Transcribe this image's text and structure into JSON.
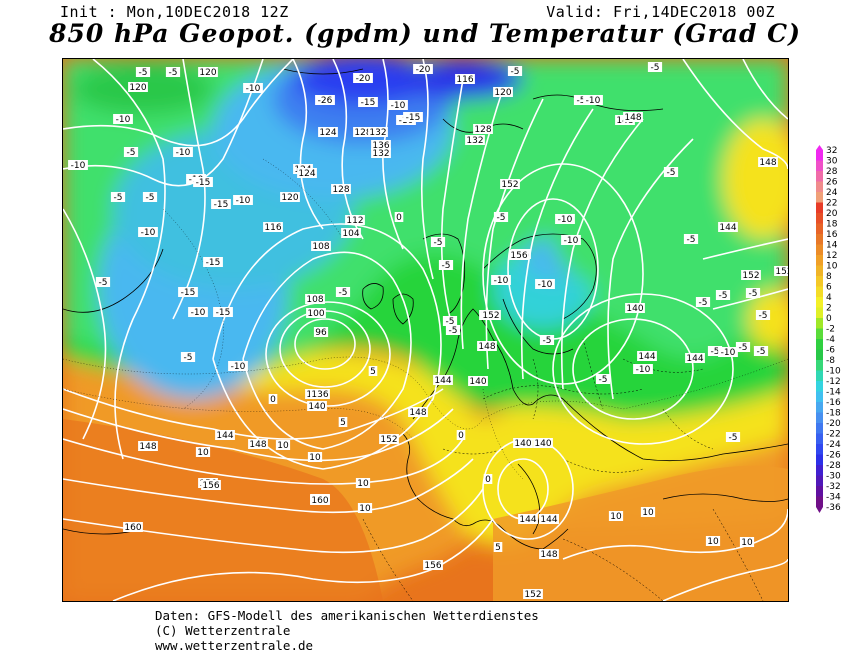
{
  "header": {
    "init": "Init : Mon,10DEC2018 12Z",
    "valid": "Valid: Fri,14DEC2018 00Z",
    "title": "850 hPa Geopot. (gpdm) und Temperatur (Grad C)"
  },
  "colors": {
    "ocean_warm": "#e8741c",
    "temp_orange": "#f09a28",
    "temp_yellow": "#f5e21a",
    "temp_green": "#27d43a",
    "temp_lightgreen": "#3fe06c",
    "temp_cyan": "#32d2d8",
    "temp_lightblue": "#4ab8f0",
    "temp_blue": "#3c7ef0",
    "temp_darkblue": "#2c3cf0",
    "contour": "#ffffff",
    "coast": "#000000"
  },
  "geopotential_labels": [
    {
      "text": "120"
    },
    {
      "text": "120"
    },
    {
      "text": "116"
    },
    {
      "text": "120"
    },
    {
      "text": "124"
    },
    {
      "text": "128"
    },
    {
      "text": "132"
    },
    {
      "text": "136"
    },
    {
      "text": "124"
    },
    {
      "text": "128"
    },
    {
      "text": "132"
    },
    {
      "text": "148"
    },
    {
      "text": "152"
    },
    {
      "text": "156"
    },
    {
      "text": "152"
    },
    {
      "text": "148"
    },
    {
      "text": "144"
    },
    {
      "text": "140"
    },
    {
      "text": "144"
    },
    {
      "text": "148"
    },
    {
      "text": "152"
    },
    {
      "text": "144"
    },
    {
      "text": "140"
    },
    {
      "text": "136"
    },
    {
      "text": "108"
    },
    {
      "text": "100"
    },
    {
      "text": "96"
    },
    {
      "text": "112"
    },
    {
      "text": "104"
    },
    {
      "text": "108"
    },
    {
      "text": "116"
    },
    {
      "text": "120"
    },
    {
      "text": "124"
    },
    {
      "text": "128"
    },
    {
      "text": "132"
    },
    {
      "text": "136"
    },
    {
      "text": "140"
    },
    {
      "text": "144"
    },
    {
      "text": "148"
    },
    {
      "text": "152"
    },
    {
      "text": "156"
    },
    {
      "text": "160"
    },
    {
      "text": "160"
    },
    {
      "text": "156"
    },
    {
      "text": "152"
    },
    {
      "text": "148"
    },
    {
      "text": "144"
    },
    {
      "text": "144"
    },
    {
      "text": "140"
    },
    {
      "text": "148"
    },
    {
      "text": "148"
    },
    {
      "text": "144"
    },
    {
      "text": "152"
    },
    {
      "text": "152"
    },
    {
      "text": "156"
    },
    {
      "text": "160"
    },
    {
      "text": "148"
    },
    {
      "text": "156"
    },
    {
      "text": "140"
    },
    {
      "text": "144"
    }
  ],
  "temperature_labels": [
    {
      "text": "-5"
    },
    {
      "text": "-5"
    },
    {
      "text": "-10"
    },
    {
      "text": "-20"
    },
    {
      "text": "-20"
    },
    {
      "text": "-26"
    },
    {
      "text": "-15"
    },
    {
      "text": "-10"
    },
    {
      "text": "-10"
    },
    {
      "text": "-15"
    },
    {
      "text": "-5"
    },
    {
      "text": "-5"
    },
    {
      "text": "-5"
    },
    {
      "text": "-10"
    },
    {
      "text": "-10"
    },
    {
      "text": "-10"
    },
    {
      "text": "-15"
    },
    {
      "text": "-10"
    },
    {
      "text": "-15"
    },
    {
      "text": "-10"
    },
    {
      "text": "-15"
    },
    {
      "text": "-15"
    },
    {
      "text": "-15"
    },
    {
      "text": "-10"
    },
    {
      "text": "-5"
    },
    {
      "text": "-5"
    },
    {
      "text": "-10"
    },
    {
      "text": "-5"
    },
    {
      "text": "0"
    },
    {
      "text": "-5"
    },
    {
      "text": "-10"
    },
    {
      "text": "-5"
    },
    {
      "text": "-10"
    },
    {
      "text": "-5"
    },
    {
      "text": "-5"
    },
    {
      "text": "-10"
    },
    {
      "text": "-10"
    },
    {
      "text": "-10"
    },
    {
      "text": "-10"
    },
    {
      "text": "-5"
    },
    {
      "text": "-5"
    },
    {
      "text": "-5"
    },
    {
      "text": "-10"
    },
    {
      "text": "-5"
    },
    {
      "text": "-5"
    },
    {
      "text": "-5"
    },
    {
      "text": "-5"
    },
    {
      "text": "-5"
    },
    {
      "text": "0"
    },
    {
      "text": "5"
    },
    {
      "text": "5"
    },
    {
      "text": "10"
    },
    {
      "text": "10"
    },
    {
      "text": "10"
    },
    {
      "text": "10"
    },
    {
      "text": "10"
    },
    {
      "text": "10"
    },
    {
      "text": "5"
    },
    {
      "text": "0"
    },
    {
      "text": "0"
    },
    {
      "text": "-5"
    },
    {
      "text": "10"
    },
    {
      "text": "10"
    },
    {
      "text": "10"
    },
    {
      "text": "-5"
    },
    {
      "text": "-5"
    },
    {
      "text": "-5"
    },
    {
      "text": "-5"
    },
    {
      "text": "-5"
    },
    {
      "text": "-10"
    },
    {
      "text": "-5"
    },
    {
      "text": "-5"
    }
  ],
  "color_scale": {
    "labels": [
      "32",
      "30",
      "28",
      "26",
      "24",
      "22",
      "20",
      "18",
      "16",
      "14",
      "12",
      "10",
      "8",
      "6",
      "4",
      "2",
      "0",
      "-2",
      "-4",
      "-6",
      "-8",
      "-10",
      "-12",
      "-14",
      "-16",
      "-18",
      "-20",
      "-22",
      "-24",
      "-26",
      "-28",
      "-30",
      "-32",
      "-34",
      "-36"
    ],
    "colors": [
      "#f028f0",
      "#f050c8",
      "#f06ca8",
      "#f08c8c",
      "#f0a078",
      "#e83c28",
      "#e85028",
      "#e86428",
      "#e87828",
      "#ec8c28",
      "#f0a028",
      "#f0b428",
      "#f4c828",
      "#f4dc28",
      "#f4f028",
      "#e0f028",
      "#a0e828",
      "#5adc3a",
      "#30d040",
      "#28c848",
      "#36d878",
      "#30d8b4",
      "#34d4e0",
      "#40c0f0",
      "#48a8f0",
      "#4890f0",
      "#4078f0",
      "#3860f0",
      "#3048f0",
      "#2c30e8",
      "#4020d0",
      "#5018b8",
      "#6010a0",
      "#701088"
    ]
  },
  "footer": {
    "line1": "Daten: GFS-Modell des amerikanischen Wetterdienstes",
    "line2": "(C) Wetterzentrale",
    "line3": "www.wetterzentrale.de"
  }
}
